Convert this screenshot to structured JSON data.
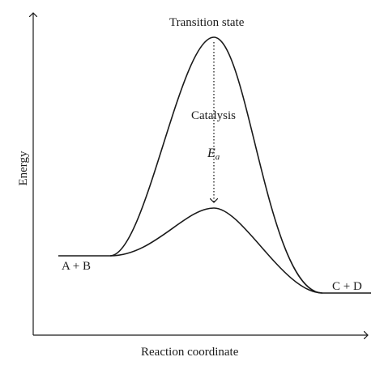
{
  "labels": {
    "transition_state": "Transition state",
    "catalysis": "Catalysis",
    "ea_symbol": "E",
    "ea_subscript": "a",
    "reactants": "A + B",
    "products": "C + D",
    "x_axis": "Reaction coordinate",
    "y_axis": "Energy"
  },
  "colors": {
    "line": "#1a1a1a",
    "background": "#ffffff"
  }
}
